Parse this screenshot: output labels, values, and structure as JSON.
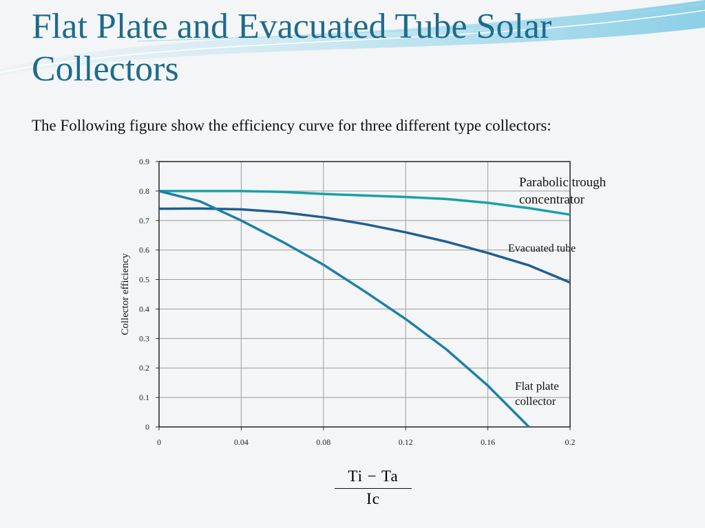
{
  "chart_data": {
    "type": "line",
    "title": "Flat Plate and Evacuated Tube Solar Collectors",
    "subtitle": "The Following figure show the efficiency curve for three different type collectors:",
    "y_label": "Collector efficiency",
    "x_label_numerator": "Ti − Ta",
    "x_label_denominator": "Ic",
    "x": [
      0,
      0.02,
      0.04,
      0.06,
      0.08,
      0.1,
      0.12,
      0.14,
      0.16,
      0.18,
      0.2
    ],
    "series": [
      {
        "name": "Parabolic trough concentrator",
        "color": "#1aa0a6",
        "values": [
          0.8,
          0.8,
          0.8,
          0.797,
          0.79,
          0.785,
          0.78,
          0.773,
          0.76,
          0.742,
          0.72
        ]
      },
      {
        "name": "Evacuated tube",
        "color": "#1f5e92",
        "values": [
          0.74,
          0.741,
          0.738,
          0.728,
          0.711,
          0.688,
          0.66,
          0.628,
          0.59,
          0.548,
          0.49
        ]
      },
      {
        "name": "Flat plate collector",
        "color": "#1b80a8",
        "values": [
          0.8,
          0.765,
          0.7,
          0.628,
          0.55,
          0.46,
          0.366,
          0.262,
          0.14,
          0.0,
          null
        ]
      }
    ],
    "xlim": [
      0,
      0.2
    ],
    "ylim": [
      0,
      0.9
    ],
    "xticks": [
      0,
      0.04,
      0.08,
      0.12,
      0.16,
      0.2
    ],
    "yticks": [
      0,
      0.1,
      0.2,
      0.3,
      0.4,
      0.5,
      0.6,
      0.7,
      0.8,
      0.9
    ],
    "grid": true
  }
}
